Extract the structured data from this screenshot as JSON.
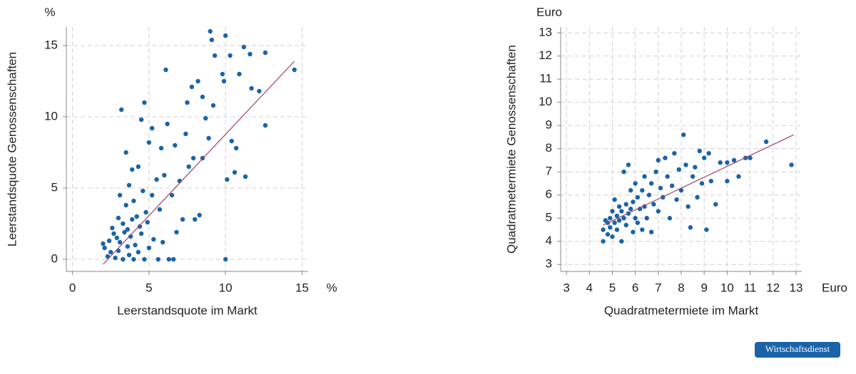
{
  "chart_data": [
    {
      "type": "scatter",
      "x_label": "Leerstandsquote im Markt",
      "y_label": "Leerstandsquote Genossenschaften",
      "x_unit": "%",
      "y_unit": "%",
      "color": "#1a63a8",
      "grid": true,
      "xlim": [
        -0.4,
        15.4
      ],
      "ylim": [
        -0.85,
        16.3
      ],
      "xticks": [
        0,
        5,
        10,
        15
      ],
      "yticks": [
        0,
        5,
        10,
        15
      ],
      "x": [
        2.0,
        2.1,
        2.3,
        2.4,
        2.5,
        2.6,
        2.7,
        2.8,
        2.9,
        3.0,
        3.0,
        3.1,
        3.1,
        3.2,
        3.3,
        3.3,
        3.4,
        3.5,
        3.5,
        3.6,
        3.6,
        3.7,
        3.7,
        3.8,
        3.9,
        3.9,
        4.0,
        4.0,
        4.1,
        4.2,
        4.3,
        4.3,
        4.4,
        4.5,
        4.5,
        4.6,
        4.7,
        4.7,
        4.8,
        4.9,
        5.0,
        5.0,
        5.2,
        5.2,
        5.3,
        5.5,
        5.6,
        5.7,
        5.8,
        5.9,
        6.0,
        6.1,
        6.2,
        6.3,
        6.5,
        6.6,
        6.7,
        6.8,
        7.0,
        7.2,
        7.4,
        7.5,
        7.6,
        7.8,
        7.9,
        8.0,
        8.2,
        8.3,
        8.5,
        8.5,
        8.7,
        8.9,
        9.0,
        9.1,
        9.2,
        9.3,
        9.8,
        9.9,
        10.0,
        10.0,
        10.1,
        10.3,
        10.4,
        10.6,
        10.7,
        10.9,
        11.2,
        11.3,
        11.6,
        11.7,
        12.2,
        12.6,
        12.6,
        14.5
      ],
      "values": [
        1.1,
        0.8,
        0.2,
        1.3,
        0.5,
        2.2,
        1.8,
        0.1,
        1.5,
        2.9,
        0.6,
        4.5,
        1.2,
        10.5,
        2.5,
        0.0,
        1.9,
        7.5,
        3.8,
        0.9,
        2.1,
        5.2,
        0.3,
        1.6,
        6.3,
        2.8,
        0.0,
        4.1,
        1.0,
        3.0,
        6.5,
        0.5,
        2.3,
        9.8,
        1.8,
        4.8,
        11.0,
        0.0,
        3.3,
        2.6,
        8.2,
        0.8,
        9.2,
        4.5,
        1.4,
        5.6,
        0.0,
        3.5,
        7.8,
        1.2,
        5.9,
        13.3,
        9.5,
        0.0,
        4.5,
        0.0,
        8.0,
        1.9,
        5.5,
        2.8,
        8.8,
        11.0,
        6.5,
        12.1,
        7.1,
        2.8,
        12.5,
        3.1,
        7.1,
        11.4,
        9.9,
        8.5,
        16.0,
        15.4,
        10.8,
        14.3,
        13.0,
        12.5,
        15.7,
        0.0,
        5.6,
        14.3,
        8.3,
        6.1,
        7.8,
        13.0,
        14.9,
        5.8,
        14.4,
        12.0,
        11.8,
        14.5,
        9.4,
        13.3
      ],
      "fit": {
        "color": "#a0406a",
        "x": [
          2.0,
          14.5
        ],
        "values": [
          -0.35,
          13.9
        ]
      }
    },
    {
      "type": "scatter",
      "x_label": "Quadratmetermiete im Markt",
      "y_label": "Quadratmetermiete Genossenschaften",
      "x_unit": "Euro",
      "y_unit": "Euro",
      "color": "#1a63a8",
      "grid": true,
      "xlim": [
        2.75,
        13.25
      ],
      "ylim": [
        2.7,
        13.25
      ],
      "xticks": [
        3,
        4,
        5,
        6,
        7,
        8,
        9,
        10,
        11,
        12,
        13
      ],
      "yticks": [
        3,
        4,
        5,
        6,
        7,
        8,
        9,
        10,
        11,
        12,
        13
      ],
      "x": [
        4.6,
        4.6,
        4.7,
        4.8,
        4.8,
        4.9,
        4.9,
        5.0,
        5.0,
        5.1,
        5.1,
        5.2,
        5.2,
        5.3,
        5.3,
        5.4,
        5.4,
        5.5,
        5.5,
        5.6,
        5.6,
        5.7,
        5.7,
        5.8,
        5.8,
        5.9,
        5.9,
        6.0,
        6.0,
        6.1,
        6.1,
        6.2,
        6.3,
        6.3,
        6.4,
        6.4,
        6.5,
        6.6,
        6.7,
        6.7,
        6.8,
        6.9,
        7.0,
        7.0,
        7.1,
        7.2,
        7.3,
        7.4,
        7.5,
        7.6,
        7.7,
        7.8,
        7.9,
        8.0,
        8.1,
        8.2,
        8.3,
        8.4,
        8.5,
        8.6,
        8.7,
        8.8,
        8.9,
        9.0,
        9.1,
        9.2,
        9.3,
        9.5,
        9.7,
        10.0,
        10.0,
        10.3,
        10.5,
        10.8,
        11.0,
        11.7,
        12.8
      ],
      "values": [
        4.0,
        4.5,
        4.9,
        4.3,
        4.8,
        5.0,
        4.6,
        4.2,
        5.3,
        4.8,
        5.8,
        4.5,
        5.1,
        5.5,
        4.9,
        4.0,
        5.3,
        7.0,
        5.0,
        5.6,
        4.7,
        7.3,
        5.2,
        6.2,
        5.4,
        4.4,
        5.7,
        6.5,
        5.0,
        5.9,
        4.8,
        5.4,
        6.2,
        4.5,
        6.8,
        5.5,
        5.0,
        6.0,
        4.4,
        6.5,
        5.6,
        7.0,
        7.5,
        5.3,
        6.3,
        5.9,
        7.6,
        6.8,
        5.0,
        6.4,
        7.8,
        5.8,
        7.1,
        6.2,
        8.6,
        7.3,
        5.5,
        4.6,
        6.8,
        7.2,
        5.9,
        7.9,
        6.5,
        7.6,
        4.5,
        7.8,
        6.6,
        5.6,
        7.4,
        7.4,
        6.6,
        7.5,
        6.8,
        7.6,
        7.6,
        8.3,
        7.3
      ],
      "fit": {
        "color": "#a0406a",
        "x": [
          4.6,
          12.9
        ],
        "values": [
          4.7,
          8.6
        ]
      }
    }
  ],
  "badge": "Wirtschaftsdienst"
}
